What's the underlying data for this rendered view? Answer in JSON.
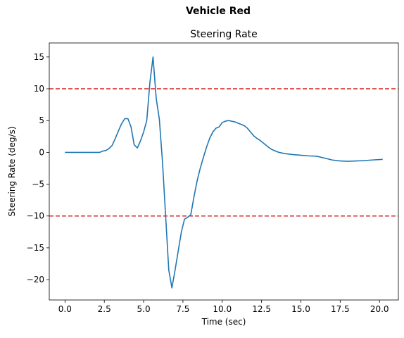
{
  "figure": {
    "suptitle": "Vehicle Red"
  },
  "chart_data": {
    "type": "line",
    "title": "Steering Rate",
    "xlabel": "Time (sec)",
    "ylabel": "Steering Rate (deg/s)",
    "xlim": [
      -1.0,
      21.2
    ],
    "ylim": [
      -23.2,
      17.2
    ],
    "xticks": [
      0.0,
      2.5,
      5.0,
      7.5,
      10.0,
      12.5,
      15.0,
      17.5,
      20.0
    ],
    "xtick_labels": [
      "0.0",
      "2.5",
      "5.0",
      "7.5",
      "10.0",
      "12.5",
      "15.0",
      "17.5",
      "20.0"
    ],
    "yticks": [
      -20,
      -15,
      -10,
      -5,
      0,
      5,
      10,
      15
    ],
    "ytick_labels": [
      "−20",
      "−15",
      "−10",
      "−5",
      "0",
      "5",
      "10",
      "15"
    ],
    "grid": false,
    "series": [
      {
        "color": "#1f77b4",
        "x": [
          0.0,
          0.5,
          1.0,
          1.5,
          2.0,
          2.2,
          2.4,
          2.6,
          2.8,
          3.0,
          3.2,
          3.4,
          3.6,
          3.8,
          4.0,
          4.2,
          4.4,
          4.6,
          4.8,
          5.0,
          5.2,
          5.4,
          5.6,
          5.8,
          6.0,
          6.2,
          6.4,
          6.6,
          6.8,
          7.0,
          7.2,
          7.4,
          7.6,
          7.8,
          8.0,
          8.2,
          8.4,
          8.6,
          8.8,
          9.0,
          9.2,
          9.4,
          9.6,
          9.8,
          10.0,
          10.2,
          10.4,
          10.6,
          10.8,
          11.0,
          11.2,
          11.4,
          11.6,
          11.8,
          12.0,
          12.2,
          12.4,
          12.6,
          12.8,
          13.0,
          13.2,
          13.4,
          13.6,
          13.8,
          14.0,
          14.5,
          15.0,
          15.5,
          16.0,
          16.5,
          17.0,
          17.5,
          18.0,
          18.5,
          19.0,
          19.5,
          20.2
        ],
        "y": [
          0.0,
          0.0,
          0.0,
          0.0,
          0.0,
          0.0,
          0.2,
          0.3,
          0.6,
          1.1,
          2.2,
          3.4,
          4.5,
          5.3,
          5.3,
          4.0,
          1.2,
          0.7,
          1.8,
          3.2,
          5.0,
          11.0,
          15.0,
          8.5,
          5.2,
          -1.5,
          -10.0,
          -18.5,
          -21.3,
          -18.5,
          -15.5,
          -12.5,
          -10.5,
          -10.2,
          -9.8,
          -7.0,
          -4.5,
          -2.5,
          -0.8,
          0.8,
          2.2,
          3.2,
          3.8,
          4.0,
          4.7,
          4.9,
          5.0,
          4.9,
          4.8,
          4.6,
          4.4,
          4.2,
          3.8,
          3.2,
          2.6,
          2.2,
          1.9,
          1.5,
          1.1,
          0.7,
          0.4,
          0.2,
          0.0,
          -0.1,
          -0.2,
          -0.35,
          -0.45,
          -0.55,
          -0.6,
          -0.9,
          -1.2,
          -1.35,
          -1.4,
          -1.35,
          -1.3,
          -1.2,
          -1.1
        ]
      }
    ],
    "hlines": [
      {
        "y": 10,
        "color": "#d62728",
        "style": "dashed"
      },
      {
        "y": -10,
        "color": "#d62728",
        "style": "dashed"
      }
    ]
  }
}
